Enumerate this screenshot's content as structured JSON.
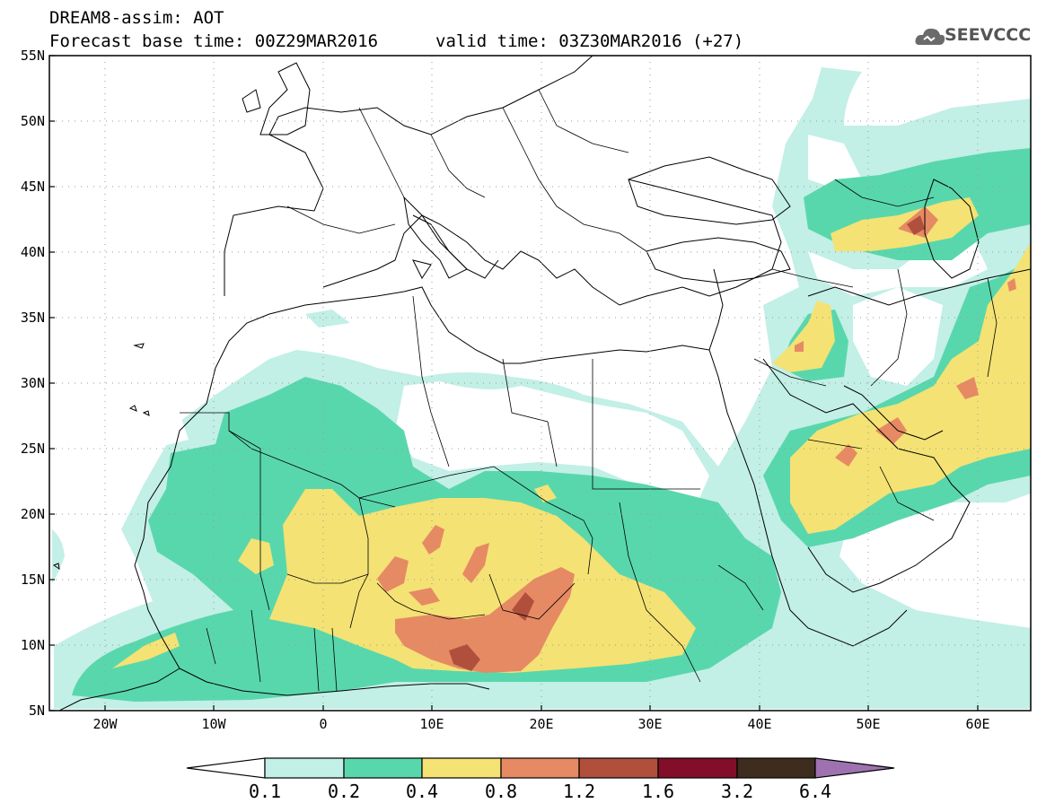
{
  "header": {
    "model_title": "DREAM8-assim: AOT",
    "base_time": "Forecast base time: 00Z29MAR2016",
    "valid_time": "valid time: 03Z30MAR2016 (+27)",
    "logo_text": "SEEVCCC"
  },
  "axes": {
    "lat_labels": [
      "55N",
      "50N",
      "45N",
      "40N",
      "35N",
      "30N",
      "25N",
      "20N",
      "15N",
      "10N",
      "5N"
    ],
    "lon_labels": [
      "20W",
      "10W",
      "0",
      "10E",
      "20E",
      "30E",
      "40E",
      "50E",
      "60E"
    ],
    "lat_range": [
      5,
      55
    ],
    "lon_range": [
      -25,
      65
    ]
  },
  "colorbar": {
    "labels": [
      "0.1",
      "0.2",
      "0.4",
      "0.8",
      "1.2",
      "1.6",
      "3.2",
      "6.4"
    ],
    "colors": [
      "#ffffff",
      "#c2efe6",
      "#59d7ac",
      "#f4e274",
      "#e68a64",
      "#b0503c",
      "#820e2a",
      "#3e2c1e",
      "#9e72b0"
    ]
  },
  "map": {
    "variable": "AOT",
    "palette": {
      "white": "#ffffff",
      "level1": "#c2efe6",
      "level2": "#59d7ac",
      "level3": "#f4e274",
      "level4": "#e68a64",
      "level5": "#b0503c",
      "level6": "#820e2a"
    }
  }
}
